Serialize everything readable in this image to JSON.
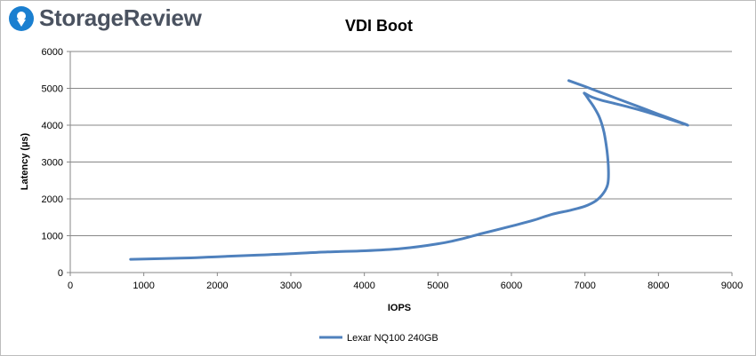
{
  "brand": {
    "name": "StorageReview",
    "icon": "storagereview-pin-icon",
    "color": "#1a7fd0"
  },
  "chart_data": {
    "type": "line",
    "title": "VDI Boot",
    "xlabel": "IOPS",
    "ylabel": "Latency (µs)",
    "xlim": [
      0,
      9000
    ],
    "ylim": [
      0,
      6000
    ],
    "xticks": [
      0,
      1000,
      2000,
      3000,
      4000,
      5000,
      6000,
      7000,
      8000,
      9000
    ],
    "yticks": [
      0,
      1000,
      2000,
      3000,
      4000,
      5000,
      6000
    ],
    "grid": "horizontal",
    "legend_position": "bottom",
    "series": [
      {
        "name": "Lexar NQ100 240GB",
        "color": "#4f81bd",
        "x": [
          820,
          1500,
          2000,
          2500,
          3000,
          3500,
          4000,
          4500,
          5000,
          5300,
          5600,
          6000,
          6300,
          6550,
          6800,
          7000,
          7150,
          7250,
          7310,
          7320,
          7300,
          7260,
          7200,
          7120,
          7050,
          7010,
          6990,
          7010,
          7100,
          7220,
          7400,
          7600,
          7800,
          8000,
          8200,
          8400,
          8200,
          8000,
          7800,
          7600,
          7400,
          7200,
          7000,
          6780
        ],
        "y": [
          360,
          390,
          430,
          470,
          510,
          560,
          590,
          650,
          780,
          900,
          1060,
          1260,
          1420,
          1580,
          1690,
          1800,
          1950,
          2150,
          2400,
          2800,
          3300,
          3800,
          4200,
          4500,
          4700,
          4820,
          4870,
          4850,
          4760,
          4680,
          4590,
          4490,
          4380,
          4260,
          4130,
          4000,
          4150,
          4300,
          4450,
          4600,
          4750,
          4900,
          5050,
          5210
        ]
      }
    ]
  }
}
